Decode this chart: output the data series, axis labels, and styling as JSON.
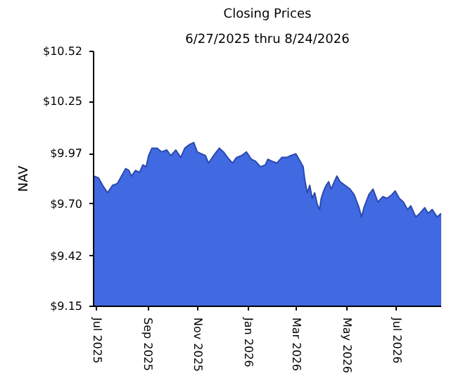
{
  "chart_data": {
    "type": "area",
    "title": "Closing Prices",
    "subtitle": "6/27/2025 thru 8/24/2026",
    "ylabel": "NAV",
    "x": [
      "2025-06-27",
      "2025-07-03",
      "2025-07-08",
      "2025-07-14",
      "2025-07-20",
      "2025-07-26",
      "2025-07-31",
      "2025-08-05",
      "2025-08-09",
      "2025-08-12",
      "2025-08-17",
      "2025-08-22",
      "2025-08-26",
      "2025-08-30",
      "2025-09-02",
      "2025-09-06",
      "2025-09-12",
      "2025-09-18",
      "2025-09-24",
      "2025-09-29",
      "2025-10-05",
      "2025-10-11",
      "2025-10-16",
      "2025-10-22",
      "2025-10-27",
      "2025-10-31",
      "2025-11-05",
      "2025-11-10",
      "2025-11-14",
      "2025-11-20",
      "2025-11-27",
      "2025-12-02",
      "2025-12-07",
      "2025-12-13",
      "2025-12-18",
      "2025-12-24",
      "2025-12-30",
      "2026-01-05",
      "2026-01-10",
      "2026-01-16",
      "2026-01-22",
      "2026-01-25",
      "2026-01-30",
      "2026-02-05",
      "2026-02-11",
      "2026-02-17",
      "2026-02-22",
      "2026-02-28",
      "2026-03-04",
      "2026-03-09",
      "2026-03-11",
      "2026-03-14",
      "2026-03-17",
      "2026-03-20",
      "2026-03-23",
      "2026-03-26",
      "2026-03-29",
      "2026-03-31",
      "2026-04-03",
      "2026-04-06",
      "2026-04-09",
      "2026-04-12",
      "2026-04-15",
      "2026-04-19",
      "2026-04-23",
      "2026-04-29",
      "2026-05-05",
      "2026-05-10",
      "2026-05-16",
      "2026-05-19",
      "2026-05-22",
      "2026-05-28",
      "2026-06-02",
      "2026-06-08",
      "2026-06-14",
      "2026-06-19",
      "2026-06-25",
      "2026-06-29",
      "2026-07-04",
      "2026-07-09",
      "2026-07-14",
      "2026-07-18",
      "2026-07-24",
      "2026-07-29",
      "2026-08-04",
      "2026-08-08",
      "2026-08-13",
      "2026-08-19",
      "2026-08-24"
    ],
    "series": [
      {
        "color": "#4169e1",
        "values": [
          9.85,
          9.84,
          9.8,
          9.76,
          9.8,
          9.81,
          9.85,
          9.89,
          9.88,
          9.85,
          9.88,
          9.87,
          9.91,
          9.9,
          9.96,
          10.0,
          10.0,
          9.98,
          9.99,
          9.96,
          9.99,
          9.95,
          10.0,
          10.02,
          10.03,
          9.98,
          9.97,
          9.96,
          9.92,
          9.96,
          10.0,
          9.98,
          9.95,
          9.92,
          9.95,
          9.96,
          9.98,
          9.94,
          9.93,
          9.9,
          9.91,
          9.94,
          9.93,
          9.92,
          9.95,
          9.95,
          9.96,
          9.97,
          9.94,
          9.9,
          9.83,
          9.76,
          9.8,
          9.73,
          9.76,
          9.7,
          9.67,
          9.73,
          9.77,
          9.8,
          9.82,
          9.78,
          9.81,
          9.85,
          9.82,
          9.8,
          9.78,
          9.75,
          9.68,
          9.63,
          9.68,
          9.75,
          9.78,
          9.71,
          9.74,
          9.73,
          9.75,
          9.77,
          9.73,
          9.71,
          9.67,
          9.69,
          9.63,
          9.65,
          9.68,
          9.65,
          9.67,
          9.63,
          9.65
        ]
      }
    ],
    "xlim": [
      "2025-06-27",
      "2026-08-24"
    ],
    "xticks": [
      {
        "value": "2025-07-01",
        "label": "Jul 2025"
      },
      {
        "value": "2025-09-01",
        "label": "Sep 2025"
      },
      {
        "value": "2025-11-01",
        "label": "Nov 2025"
      },
      {
        "value": "2026-01-01",
        "label": "Jan 2026"
      },
      {
        "value": "2026-03-01",
        "label": "Mar 2026"
      },
      {
        "value": "2026-05-01",
        "label": "May 2026"
      },
      {
        "value": "2026-07-01",
        "label": "Jul 2026"
      }
    ],
    "ylim": [
      9.15,
      10.52
    ],
    "yticks": [
      {
        "value": 9.15,
        "label": "$9.15"
      },
      {
        "value": 9.42,
        "label": "$9.42"
      },
      {
        "value": 9.7,
        "label": "$9.70"
      },
      {
        "value": 9.97,
        "label": "$9.97"
      },
      {
        "value": 10.25,
        "label": "$10.25"
      },
      {
        "value": 10.52,
        "label": "$10.52"
      }
    ],
    "grid": false
  }
}
